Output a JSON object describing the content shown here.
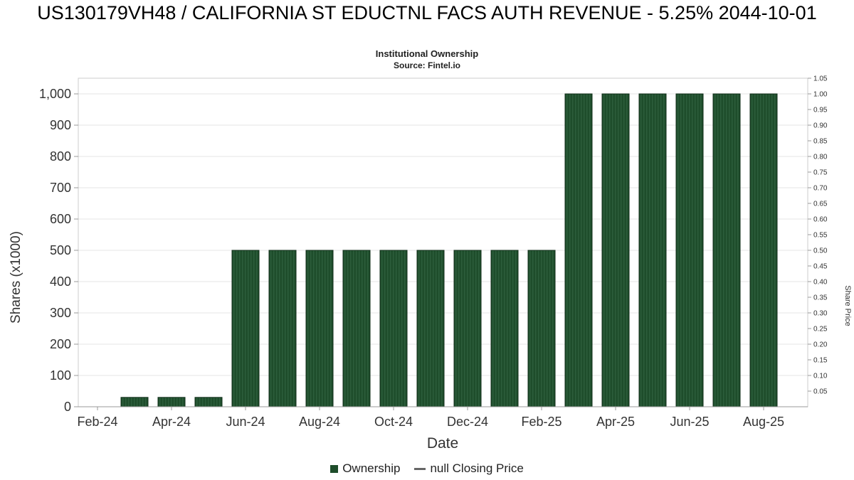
{
  "chart_data": {
    "type": "bar",
    "title": "US130179VH48 / CALIFORNIA ST EDUCTNL FACS AUTH REVENUE - 5.25% 2044-10-01",
    "subtitle": "Institutional Ownership",
    "source": "Source: Fintel.io",
    "xlabel": "Date",
    "ylabel_left": "Shares (x1000)",
    "ylabel_right": "Share Price",
    "left_axis": {
      "min": 0,
      "max": 1000,
      "step": 100
    },
    "right_axis": {
      "min": 0,
      "max": 1.05,
      "step": 0.05
    },
    "x_tick_labels": [
      "Feb-24",
      "Apr-24",
      "Jun-24",
      "Aug-24",
      "Oct-24",
      "Dec-24",
      "Feb-25",
      "Apr-25",
      "Jun-25",
      "Aug-25"
    ],
    "categories": [
      "Mar-24",
      "Apr-24",
      "May-24",
      "Jun-24",
      "Jul-24",
      "Aug-24",
      "Sep-24",
      "Oct-24",
      "Nov-24",
      "Dec-24",
      "Jan-25",
      "Feb-25",
      "Mar-25",
      "Apr-25",
      "May-25",
      "Jun-25",
      "Jul-25",
      "Aug-25"
    ],
    "series": [
      {
        "name": "Ownership",
        "type": "bar",
        "color": "#1e4d2b",
        "stripe_color": "#2d5e3c",
        "border_color": "#102e1a",
        "values": [
          30,
          30,
          30,
          500,
          500,
          500,
          500,
          500,
          500,
          500,
          500,
          500,
          1000,
          1000,
          1000,
          1000,
          1000,
          1000
        ]
      },
      {
        "name": "null Closing Price",
        "type": "line",
        "color": "#666666",
        "values": []
      }
    ],
    "legend": [
      {
        "label": "Ownership",
        "marker": "square",
        "color": "#1e4d2b"
      },
      {
        "label": "null Closing Price",
        "marker": "dash",
        "color": "#666666"
      }
    ],
    "grid": "horizontal",
    "legend_position": "bottom"
  }
}
